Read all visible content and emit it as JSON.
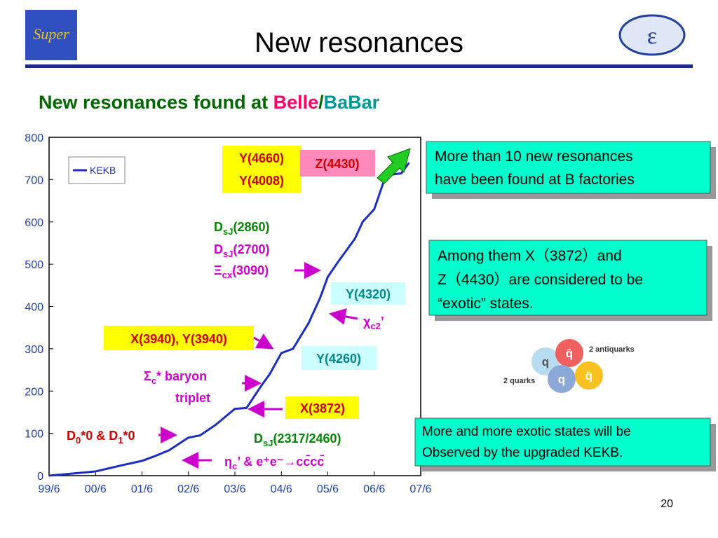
{
  "slide": {
    "logo_text": "Super",
    "title": "New resonances",
    "subtitle": [
      "New resonances found at ",
      "Belle",
      "/",
      "BaBar"
    ],
    "boxes": [
      [
        "More than 10 new resonances",
        "have been found at B factories"
      ],
      [
        "Among them X（3872）and",
        "Z（4430）are considered to be",
        "“exotic” states."
      ],
      [
        "More and more exotic states will be",
        "Observed by the upgraded KEKB."
      ]
    ],
    "quark_diagram": {
      "quark": "q",
      "antiquark": "q̄",
      "antiquarks_label": "2 antiquarks",
      "quarks_label": "2 quarks"
    },
    "page_number": "20"
  },
  "chart_data": {
    "type": "line",
    "x": [
      "99/6",
      "00/6",
      "01/1",
      "01/6",
      "01/9",
      "02/1",
      "02/6",
      "02/9",
      "03/1",
      "03/6",
      "03/9",
      "04/1",
      "04/3",
      "04/6",
      "04/9",
      "05/1",
      "05/4",
      "05/6",
      "05/9",
      "06/1",
      "06/3",
      "06/6",
      "06/9",
      "07/1",
      "07/3"
    ],
    "series": [
      {
        "name": "KEKB",
        "color": "#1a2fbf",
        "values": [
          0,
          10,
          25,
          35,
          45,
          60,
          90,
          95,
          120,
          158,
          160,
          215,
          240,
          290,
          300,
          360,
          420,
          470,
          510,
          560,
          600,
          630,
          710,
          715,
          740
        ]
      }
    ],
    "xlim": [
      "99/6",
      "07/6"
    ],
    "xticks": [
      "99/6",
      "00/6",
      "01/6",
      "02/6",
      "03/6",
      "04/6",
      "05/6",
      "06/6",
      "07/6"
    ],
    "ylim": [
      0,
      800
    ],
    "yticks": [
      0,
      100,
      200,
      300,
      400,
      500,
      600,
      700,
      800
    ],
    "legend": "upper left",
    "annotations": [
      [
        "Y(4660)"
      ],
      [
        "Y(4008)"
      ],
      [
        "Z(4430)"
      ],
      [
        "D",
        "sJ",
        "(2860)"
      ],
      [
        "D",
        "sJ",
        "(2700)"
      ],
      [
        "Ξ",
        "cx",
        "(3090)"
      ],
      [
        "Y(4320)"
      ],
      [
        "χ",
        "c2",
        "’"
      ],
      [
        "X(3940), Y(3940)"
      ],
      [
        "Y(4260)"
      ],
      [
        "Σ",
        "c",
        "* baryon"
      ],
      [
        "triplet"
      ],
      [
        "X(3872)"
      ],
      [
        "D",
        "0",
        "*0 & D",
        "1",
        "*0"
      ],
      [
        "D",
        "sJ",
        "(2317/2460)"
      ],
      [
        "η",
        "c",
        "’ & e⁺e⁻→cc̄cc̄"
      ]
    ]
  }
}
